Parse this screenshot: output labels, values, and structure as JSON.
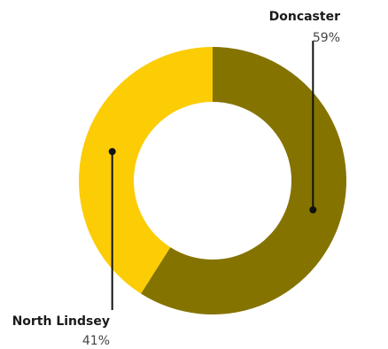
{
  "chart_data": {
    "type": "pie",
    "variant": "donut",
    "title": "",
    "slices": [
      {
        "name": "Doncaster",
        "value": 59,
        "label": "59%",
        "color": "#857300"
      },
      {
        "name": "North Lindsey",
        "value": 41,
        "label": "41%",
        "color": "#fccc05"
      }
    ],
    "legend": "none"
  }
}
